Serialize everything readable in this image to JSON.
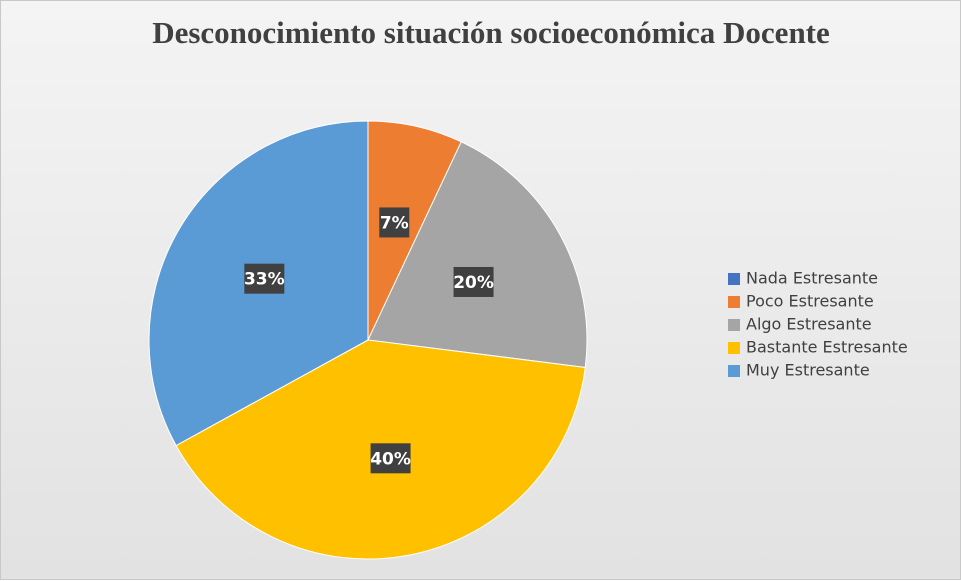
{
  "chart_data": {
    "type": "pie",
    "title": "Desconocimiento situación socioeconómica Docente",
    "categories": [
      "Nada Estresante",
      "Poco Estresante",
      "Algo Estresante",
      "Bastante Estresante",
      "Muy Estresante"
    ],
    "values": [
      0,
      7,
      20,
      40,
      33
    ],
    "value_labels": [
      null,
      "7%",
      "20%",
      "40%",
      "33%"
    ],
    "colors": [
      "#4472c4",
      "#ed7d31",
      "#a5a5a5",
      "#ffc000",
      "#5b9bd5"
    ],
    "legend": "right"
  }
}
